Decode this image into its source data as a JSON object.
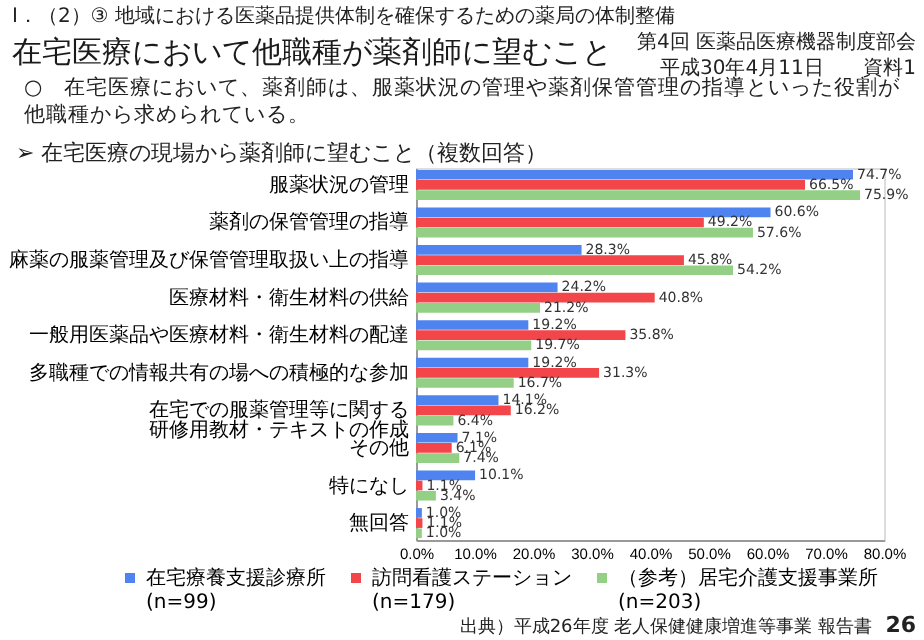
{
  "chart_data": {
    "type": "bar",
    "orientation": "horizontal",
    "title": "在宅医療において他職種が薬剤師に望むこと",
    "subtitle": "➢ 在宅医療の現場から薬剤師に望むこと（複数回答）",
    "categories": [
      "服薬状況の管理",
      "薬剤の保管管理の指導",
      "麻薬の服薬管理及び保管管理取扱い上の指導",
      "医療材料・衛生材料の供給",
      "一般用医薬品や医療材料・衛生材料の配達",
      "多職種での情報共有の場への積極的な参加",
      "在宅での服薬管理等に関する研修用教材・テキストの作成",
      "その他",
      "特になし",
      "無回答"
    ],
    "series": [
      {
        "name": "在宅療養支援診療所\n(n=99)",
        "color": "#4f83f0",
        "values": [
          74.7,
          60.6,
          28.3,
          24.2,
          19.2,
          19.2,
          14.1,
          7.1,
          10.1,
          1.0
        ],
        "value_labels": [
          "74.7%",
          "60.6%",
          "28.3%",
          "24.2%",
          "19.2%",
          "19.2%",
          "14.1%",
          "7.1%",
          "10.1%",
          "1.0%"
        ]
      },
      {
        "name": "訪問看護ステーション\n(n=179)",
        "color": "#f2464b",
        "values": [
          66.5,
          49.2,
          45.8,
          40.8,
          35.8,
          31.3,
          16.2,
          6.1,
          1.1,
          1.1
        ],
        "value_labels": [
          "66.5%",
          "49.2%",
          "45.8%",
          "40.8%",
          "35.8%",
          "31.3%",
          "16.2%",
          "6.1%",
          "1.1%",
          "1.1%"
        ]
      },
      {
        "name": "（参考）居宅介護支援事業所\n(n=203)",
        "color": "#93cf85",
        "values": [
          75.9,
          57.6,
          54.2,
          21.2,
          19.7,
          16.7,
          6.4,
          7.4,
          3.4,
          1.0
        ],
        "value_labels": [
          "75.9%",
          "57.6%",
          "54.2%",
          "21.2%",
          "19.7%",
          "16.7%",
          "6.4%",
          "7.4%",
          "3.4%",
          "1.0%"
        ]
      }
    ],
    "xlim": [
      0,
      80
    ],
    "xticks": [
      {
        "value": 0,
        "label": "0.0%"
      },
      {
        "value": 10,
        "label": "10.0%"
      },
      {
        "value": 20,
        "label": "20.0%"
      },
      {
        "value": 30,
        "label": "30.0%"
      },
      {
        "value": 40,
        "label": "40.0%"
      },
      {
        "value": 50,
        "label": "50.0%"
      },
      {
        "value": 60,
        "label": "60.0%"
      },
      {
        "value": 70,
        "label": "70.0%"
      },
      {
        "value": 80,
        "label": "80.0%"
      }
    ],
    "legend": "bottom",
    "annotations": [
      "Ⅰ．（2）③ 地域における医薬品提供体制を確保するための薬局の体制整備",
      "第4回 医薬品医療機器制度部会",
      "平成30年4月11日",
      "資料1",
      "○　在宅医療において、薬剤師は、服薬状況の管理や薬剤保管管理の指導といった役割が他職種から求められている。",
      "出典）平成26年度 老人保健健康増進等事業 報告書",
      "26"
    ]
  }
}
